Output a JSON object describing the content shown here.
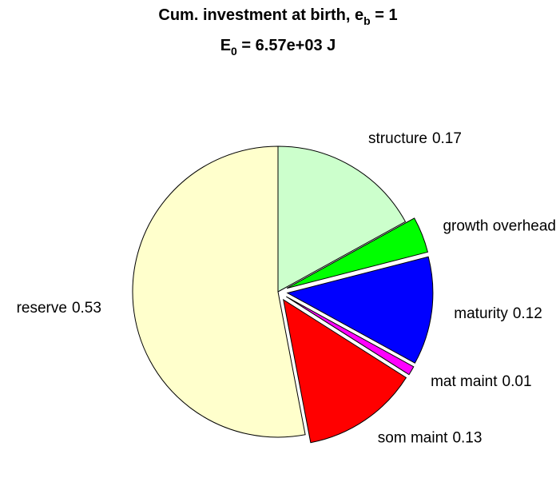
{
  "chart_data": {
    "type": "pie",
    "title_lines": [
      {
        "main": "Cum. investment at birth, e",
        "sub": "b",
        "rest": " = 1"
      },
      {
        "main": "E",
        "sub": "0",
        "rest": " = 6.57e+03 J"
      }
    ],
    "categories": [
      "structure",
      "growth overhead",
      "maturity",
      "mat maint",
      "som maint",
      "reserve"
    ],
    "values": [
      0.17,
      0.04,
      0.12,
      0.01,
      0.13,
      0.53
    ],
    "colors": [
      "#ccffcc",
      "#00ff00",
      "#0000ff",
      "#ff00ff",
      "#ff0000",
      "#ffffcc"
    ],
    "explode": [
      false,
      true,
      true,
      true,
      true,
      false
    ]
  }
}
